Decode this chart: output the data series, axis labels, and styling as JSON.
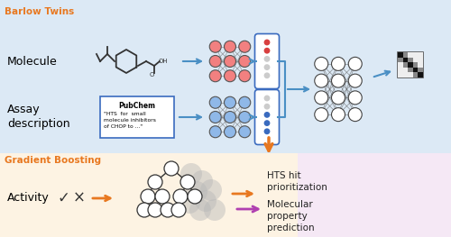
{
  "fig_width": 5.0,
  "fig_height": 2.63,
  "dpi": 100,
  "bg_top": "#dce9f5",
  "bg_bottom": "#fdf3e3",
  "bg_output": "#f5e8f5",
  "title_barlow": "Barlow Twins",
  "title_barlow_color": "#e87820",
  "title_gb": "Gradient Boosting",
  "title_gb_color": "#e87820",
  "label_molecule": "Molecule",
  "label_assay": "Assay\ndescription",
  "label_activity": "Activity",
  "pubchem_title": "PubChem",
  "pubchem_text": "\"HTS  for  small\nmolecule inhibitors\nof CHOP to ...\"",
  "hts_text": "HTS hit\nprioritization",
  "mol_prop_text": "Molecular\nproperty\nprediction",
  "pink": "#f28080",
  "blue_node": "#8fb8e8",
  "dark_blue": "#3a6bbf",
  "orange": "#e87820",
  "purple": "#b040b0",
  "arrow_blue": "#4a8fc4",
  "node_outline": "#444444",
  "white_node": "#ffffff",
  "grey_node": "#c8c8c8"
}
